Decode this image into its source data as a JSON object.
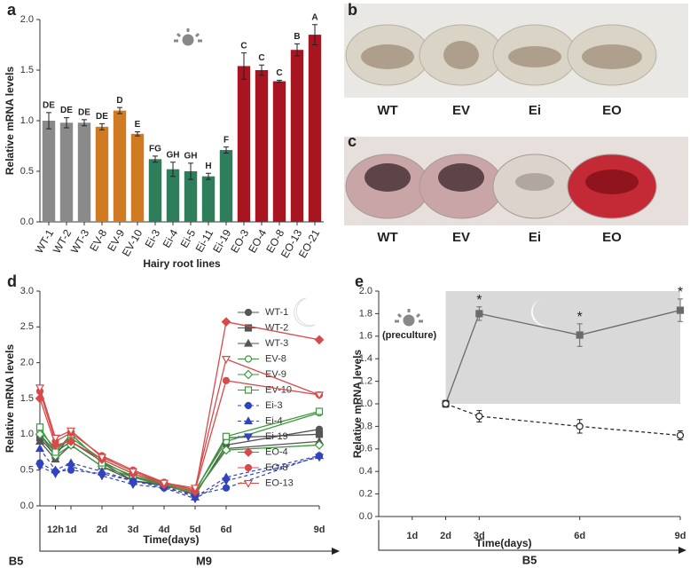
{
  "chart_data": [
    {
      "type": "bar",
      "panel": "a",
      "xlabel": "Hairy root lines",
      "ylabel": "Relative mRNA levels",
      "categories": [
        "WT-1",
        "WT-2",
        "WT-3",
        "EV-8",
        "EV-9",
        "EV-10",
        "Ei-3",
        "Ei-4",
        "Ei-5",
        "Ei-11",
        "Ei-19",
        "EO-3",
        "EO-4",
        "EO-8",
        "EO-13",
        "EO-21"
      ],
      "values": [
        1.0,
        0.98,
        0.98,
        0.94,
        1.1,
        0.87,
        0.62,
        0.52,
        0.5,
        0.45,
        0.71,
        1.54,
        1.5,
        1.39,
        1.7,
        1.85
      ],
      "errors": [
        0.08,
        0.05,
        0.03,
        0.03,
        0.03,
        0.02,
        0.03,
        0.07,
        0.08,
        0.03,
        0.03,
        0.13,
        0.05,
        0.01,
        0.06,
        0.1
      ],
      "letters": [
        "DE",
        "DE",
        "DE",
        "DE",
        "D",
        "E",
        "FG",
        "GH",
        "GH",
        "H",
        "F",
        "C",
        "C",
        "C",
        "B",
        "A"
      ],
      "colors": [
        "#8a8a8a",
        "#8a8a8a",
        "#8a8a8a",
        "#d07a22",
        "#d07a22",
        "#d07a22",
        "#2e7d5b",
        "#2e7d5b",
        "#2e7d5b",
        "#2e7d5b",
        "#2e7d5b",
        "#a8141f",
        "#a8141f",
        "#a8141f",
        "#a8141f",
        "#a8141f"
      ],
      "ylim": [
        0,
        2
      ],
      "yticks": [
        {
          "value": 0,
          "label": "0.0"
        },
        0.5,
        {
          "value": 1,
          "label": "1.0"
        },
        1.5,
        {
          "value": 2,
          "label": "2.0"
        }
      ]
    },
    {
      "type": "line",
      "panel": "d",
      "xlabel": "Time(days)",
      "ylabel": "Relative mRNA levels",
      "phases": [
        "B5",
        "M9"
      ],
      "x": [
        0,
        0.5,
        1,
        2,
        3,
        4,
        5,
        6,
        9
      ],
      "xlim": [
        0,
        9
      ],
      "xticks": [
        {
          "value": 0.5,
          "label": "12h"
        },
        {
          "value": 1,
          "label": "1d"
        },
        {
          "value": 2,
          "label": "2d"
        },
        {
          "value": 3,
          "label": "3d"
        },
        {
          "value": 4,
          "label": "4d"
        },
        {
          "value": 5,
          "label": "5d"
        },
        {
          "value": 6,
          "label": "6d"
        },
        {
          "value": 9,
          "label": "9d"
        }
      ],
      "ylim": [
        0,
        3
      ],
      "yticks": [
        {
          "value": 0,
          "label": "0.0"
        },
        0.5,
        {
          "value": 1,
          "label": "1.0"
        },
        1.5,
        {
          "value": 2,
          "label": "2.0"
        },
        2.5,
        {
          "value": 3,
          "label": "3.0"
        }
      ],
      "series": [
        {
          "name": "WT-1",
          "color": "#555555",
          "marker": "circle",
          "dashed": false,
          "values": [
            1.0,
            0.75,
            0.9,
            0.62,
            0.4,
            0.3,
            0.15,
            0.85,
            1.07
          ]
        },
        {
          "name": "WT-2",
          "color": "#555555",
          "marker": "square",
          "dashed": false,
          "values": [
            0.95,
            0.7,
            1.0,
            0.6,
            0.35,
            0.3,
            0.2,
            0.95,
            1.0
          ]
        },
        {
          "name": "WT-3",
          "color": "#555555",
          "marker": "triangle",
          "dashed": false,
          "values": [
            0.9,
            0.65,
            0.85,
            0.55,
            0.35,
            0.28,
            0.18,
            0.8,
            0.9
          ]
        },
        {
          "name": "EV-8",
          "color": "#3a9a3a",
          "marker": "circle-open",
          "dashed": false,
          "values": [
            1.05,
            0.8,
            0.95,
            0.65,
            0.45,
            0.32,
            0.22,
            0.9,
            1.3
          ]
        },
        {
          "name": "EV-9",
          "color": "#3a9a3a",
          "marker": "diamond-open",
          "dashed": false,
          "values": [
            1.0,
            0.7,
            0.85,
            0.55,
            0.4,
            0.28,
            0.18,
            0.78,
            0.85
          ]
        },
        {
          "name": "EV-10",
          "color": "#3a9a3a",
          "marker": "square-open",
          "dashed": false,
          "values": [
            1.1,
            0.75,
            1.0,
            0.6,
            0.42,
            0.3,
            0.2,
            0.97,
            1.32
          ]
        },
        {
          "name": "Ei-3",
          "color": "#3344bb",
          "marker": "circle",
          "dashed": true,
          "values": [
            0.6,
            0.48,
            0.5,
            0.45,
            0.35,
            0.25,
            0.15,
            0.25,
            0.7
          ]
        },
        {
          "name": "Ei-4",
          "color": "#3344bb",
          "marker": "triangle",
          "dashed": true,
          "values": [
            0.8,
            0.5,
            0.6,
            0.48,
            0.35,
            0.28,
            0.12,
            0.4,
            0.7
          ]
        },
        {
          "name": "Ei-19",
          "color": "#3344bb",
          "marker": "triangle-down",
          "dashed": true,
          "values": [
            0.55,
            0.45,
            0.55,
            0.42,
            0.3,
            0.25,
            0.1,
            0.35,
            0.68
          ]
        },
        {
          "name": "EO-4",
          "color": "#d84a4a",
          "marker": "diamond",
          "dashed": false,
          "values": [
            1.5,
            0.85,
            0.9,
            0.65,
            0.45,
            0.3,
            0.2,
            2.57,
            2.32
          ]
        },
        {
          "name": "EO-8",
          "color": "#d84a4a",
          "marker": "circle",
          "dashed": false,
          "values": [
            1.6,
            0.9,
            1.02,
            0.7,
            0.5,
            0.33,
            0.22,
            1.75,
            1.55
          ]
        },
        {
          "name": "EO-13",
          "color": "#d84a4a",
          "marker": "triangle-down-open",
          "dashed": false,
          "values": [
            1.65,
            0.95,
            1.05,
            0.68,
            0.48,
            0.32,
            0.25,
            2.05,
            1.55
          ]
        }
      ]
    },
    {
      "type": "line",
      "panel": "e",
      "xlabel": "Time(days)",
      "ylabel": "Relative mRNA levels",
      "phases": [
        "B5"
      ],
      "annotation": "(preculture)",
      "xlim": [
        0,
        9
      ],
      "xticks": [
        {
          "value": 1,
          "label": "1d"
        },
        {
          "value": 2,
          "label": "2d"
        },
        {
          "value": 3,
          "label": "3d"
        },
        {
          "value": 6,
          "label": "6d"
        },
        {
          "value": 9,
          "label": "9d"
        }
      ],
      "ylim": [
        0,
        2
      ],
      "yticks": [
        {
          "value": 0,
          "label": "0.0"
        },
        0.2,
        0.4,
        0.6,
        0.8,
        {
          "value": 1,
          "label": "1.0"
        },
        1.2,
        1.4,
        1.6,
        1.8,
        {
          "value": 2,
          "label": "2.0"
        }
      ],
      "series": [
        {
          "color": "#6a6a6a",
          "marker": "square",
          "dashed": false,
          "x": [
            2,
            3,
            6,
            9
          ],
          "values": [
            1.0,
            1.8,
            1.61,
            1.83
          ],
          "errors": [
            0.03,
            0.06,
            0.1,
            0.1
          ],
          "significance": [
            null,
            "*",
            "*",
            "*"
          ]
        },
        {
          "color": "#222222",
          "marker": "circle-open",
          "dashed": true,
          "x": [
            2,
            3,
            6,
            9
          ],
          "values": [
            1.0,
            0.89,
            0.8,
            0.72
          ],
          "errors": [
            0.03,
            0.05,
            0.06,
            0.04
          ]
        }
      ]
    }
  ],
  "photos": [
    {
      "panel": "b",
      "labels": [
        "WT",
        "EV",
        "Ei",
        "EO"
      ]
    },
    {
      "panel": "c",
      "labels": [
        "WT",
        "EV",
        "Ei",
        "EO"
      ]
    }
  ]
}
